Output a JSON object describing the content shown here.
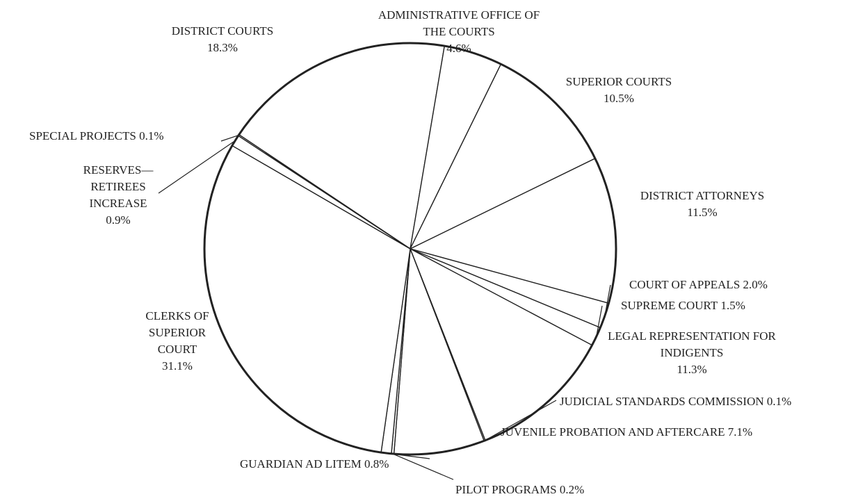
{
  "chart_data": {
    "type": "pie",
    "categories": [
      "DISTRICT COURTS",
      "ADMINISTRATIVE OFFICE OF THE COURTS",
      "SUPERIOR COURTS",
      "DISTRICT ATTORNEYS",
      "COURT OF APPEALS",
      "SUPREME COURT",
      "LEGAL REPRESENTATION FOR INDIGENTS",
      "JUDICIAL STANDARDS COMMISSION",
      "JUVENILE PROBATION AND AFTERCARE",
      "PILOT PROGRAMS",
      "GUARDIAN AD LITEM",
      "CLERKS OF SUPERIOR COURT",
      "RESERVES— RETIREES INCREASE",
      "SPECIAL PROJECTS"
    ],
    "values": [
      18.3,
      4.6,
      10.5,
      11.5,
      2.0,
      1.5,
      11.3,
      0.1,
      7.1,
      0.2,
      0.8,
      31.1,
      0.9,
      0.1
    ],
    "value_labels": [
      "18.3%",
      "4.6%",
      "10.5%",
      "11.5%",
      "2.0%",
      "1.5%",
      "11.3%",
      "0.1%",
      "7.1%",
      "0.2%",
      "0.8%",
      "31.1%",
      "0.9%",
      "0.1%"
    ],
    "color": "#ffffff"
  }
}
